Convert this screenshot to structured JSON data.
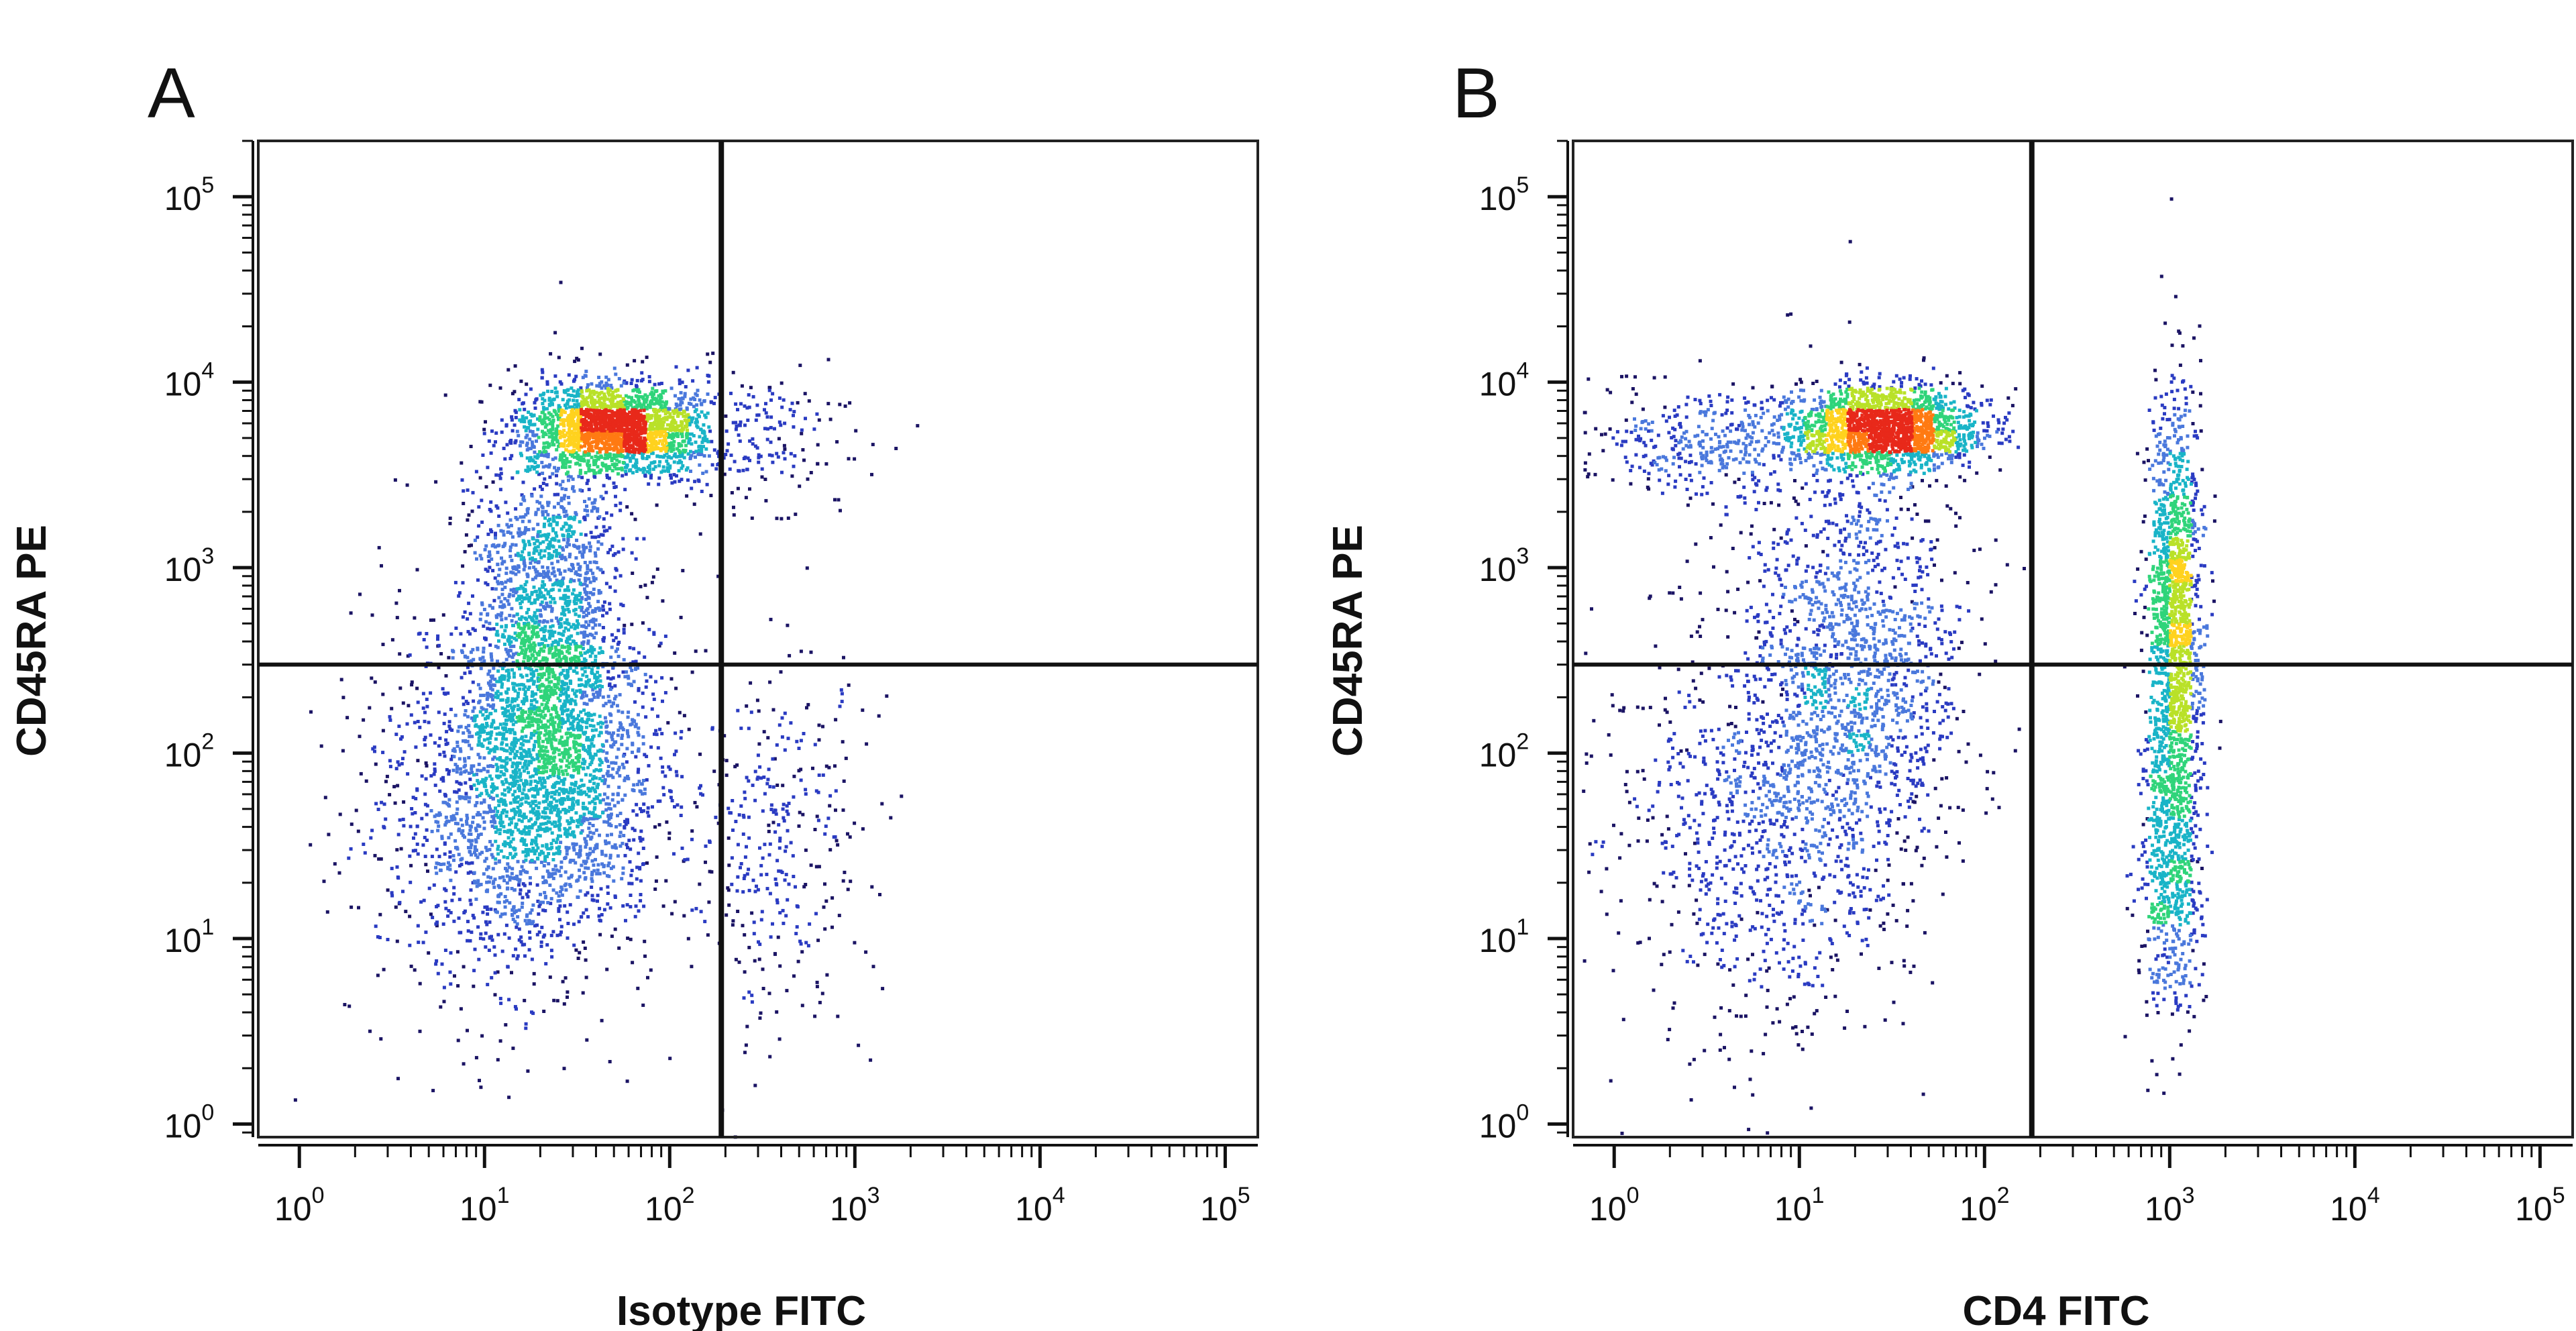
{
  "chart_data": [
    {
      "panel": "A",
      "type": "scatter",
      "subtype": "flow-cytometry-density-dot-plot",
      "xlabel": "Isotype FITC",
      "ylabel": "CD45RA PE",
      "x_scale": "log",
      "y_scale": "log",
      "xlim": [
        0.6,
        150000
      ],
      "ylim": [
        0.85,
        200000
      ],
      "x_ticks": [
        {
          "base": "10",
          "exp": "0",
          "value": 1
        },
        {
          "base": "10",
          "exp": "1",
          "value": 10
        },
        {
          "base": "10",
          "exp": "2",
          "value": 100
        },
        {
          "base": "10",
          "exp": "3",
          "value": 1000
        },
        {
          "base": "10",
          "exp": "4",
          "value": 10000
        },
        {
          "base": "10",
          "exp": "5",
          "value": 100000
        }
      ],
      "y_ticks": [
        {
          "base": "10",
          "exp": "0",
          "value": 1
        },
        {
          "base": "10",
          "exp": "1",
          "value": 10
        },
        {
          "base": "10",
          "exp": "2",
          "value": 100
        },
        {
          "base": "10",
          "exp": "3",
          "value": 1000
        },
        {
          "base": "10",
          "exp": "4",
          "value": 10000
        },
        {
          "base": "10",
          "exp": "5",
          "value": 100000
        }
      ],
      "quadrant_gates": {
        "x": 190,
        "y": 300
      },
      "populations": [
        {
          "x_center": 50,
          "y_center": 5800,
          "x_sd_log": 0.23,
          "y_sd_log": 0.12,
          "weight": 0.3
        },
        {
          "x_center": 22,
          "y_center": 700,
          "x_sd_log": 0.2,
          "y_sd_log": 0.45,
          "weight": 0.2
        },
        {
          "x_center": 22,
          "y_center": 80,
          "x_sd_log": 0.3,
          "y_sd_log": 0.45,
          "weight": 0.32
        },
        {
          "x_center": 8,
          "y_center": 50,
          "x_sd_log": 0.35,
          "y_sd_log": 0.6,
          "weight": 0.1
        },
        {
          "x_center": 350,
          "y_center": 30,
          "x_sd_log": 0.25,
          "y_sd_log": 0.5,
          "weight": 0.05
        },
        {
          "x_center": 250,
          "y_center": 5000,
          "x_sd_log": 0.3,
          "y_sd_log": 0.2,
          "weight": 0.03
        }
      ],
      "density_colors": [
        "#1b1464",
        "#2a3bc2",
        "#4a78dc",
        "#19b4c7",
        "#2fd47a",
        "#b9e128",
        "#ffd21e",
        "#ff7a12",
        "#e8291a"
      ]
    },
    {
      "panel": "B",
      "type": "scatter",
      "subtype": "flow-cytometry-density-dot-plot",
      "xlabel": "CD4 FITC",
      "ylabel": "CD45RA PE",
      "x_scale": "log",
      "y_scale": "log",
      "xlim": [
        0.6,
        150000
      ],
      "ylim": [
        0.85,
        200000
      ],
      "x_ticks": [
        {
          "base": "10",
          "exp": "0",
          "value": 1
        },
        {
          "base": "10",
          "exp": "1",
          "value": 10
        },
        {
          "base": "10",
          "exp": "2",
          "value": 100
        },
        {
          "base": "10",
          "exp": "3",
          "value": 1000
        },
        {
          "base": "10",
          "exp": "4",
          "value": 10000
        },
        {
          "base": "10",
          "exp": "5",
          "value": 100000
        }
      ],
      "y_ticks": [
        {
          "base": "10",
          "exp": "0",
          "value": 1
        },
        {
          "base": "10",
          "exp": "1",
          "value": 10
        },
        {
          "base": "10",
          "exp": "2",
          "value": 100
        },
        {
          "base": "10",
          "exp": "3",
          "value": 1000
        },
        {
          "base": "10",
          "exp": "4",
          "value": 10000
        },
        {
          "base": "10",
          "exp": "5",
          "value": 100000
        }
      ],
      "quadrant_gates": {
        "x": 180,
        "y": 300
      },
      "populations": [
        {
          "x_center": 28,
          "y_center": 5800,
          "x_sd_log": 0.25,
          "y_sd_log": 0.11,
          "weight": 0.28
        },
        {
          "x_center": 18,
          "y_center": 300,
          "x_sd_log": 0.3,
          "y_sd_log": 0.6,
          "weight": 0.22
        },
        {
          "x_center": 6,
          "y_center": 40,
          "x_sd_log": 0.4,
          "y_sd_log": 0.6,
          "weight": 0.12
        },
        {
          "x_center": 1050,
          "y_center": 600,
          "x_sd_log": 0.07,
          "y_sd_log": 0.55,
          "weight": 0.2
        },
        {
          "x_center": 1000,
          "y_center": 30,
          "x_sd_log": 0.09,
          "y_sd_log": 0.45,
          "weight": 0.1
        },
        {
          "x_center": 3,
          "y_center": 5000,
          "x_sd_log": 0.3,
          "y_sd_log": 0.15,
          "weight": 0.05
        }
      ],
      "density_colors": [
        "#1b1464",
        "#2a3bc2",
        "#4a78dc",
        "#19b4c7",
        "#2fd47a",
        "#b9e128",
        "#ffd21e",
        "#ff7a12",
        "#e8291a"
      ]
    }
  ]
}
